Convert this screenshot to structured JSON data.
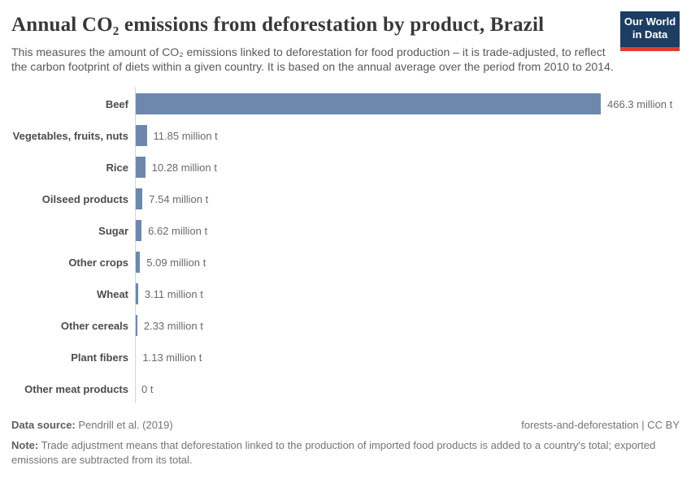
{
  "header": {
    "logo": {
      "line1": "Our World",
      "line2": "in Data"
    }
  },
  "chart_data": {
    "type": "bar",
    "orientation": "horizontal",
    "title": "Annual CO₂ emissions from deforestation by product, Brazil",
    "subtitle": "This measures the amount of CO₂ emissions linked to deforestation for food production – it is trade-adjusted, to reflect the carbon footprint of diets within a given country. It is based on the annual average over the period from 2010 to 2014.",
    "categories": [
      "Beef",
      "Vegetables, fruits, nuts",
      "Rice",
      "Oilseed products",
      "Sugar",
      "Other crops",
      "Wheat",
      "Other cereals",
      "Plant fibers",
      "Other meat products"
    ],
    "values": [
      466.3,
      11.85,
      10.28,
      7.54,
      6.62,
      5.09,
      3.11,
      2.33,
      1.13,
      0
    ],
    "value_labels": [
      "466.3 million t",
      "11.85 million t",
      "10.28 million t",
      "7.54 million t",
      "6.62 million t",
      "5.09 million t",
      "3.11 million t",
      "2.33 million t",
      "1.13 million t",
      "0 t"
    ],
    "unit": "million t",
    "xlim": [
      0,
      466.3
    ],
    "grid": "off",
    "legend": "none",
    "bar_color": "#6e88ad"
  },
  "footer": {
    "data_source_label": "Data source:",
    "data_source_value": "Pendrill et al. (2019)",
    "credit_link": "forests-and-deforestation",
    "credit_sep": " | ",
    "credit_license": "CC BY",
    "note_label": "Note:",
    "note_text": "Trade adjustment means that deforestation linked to the production of imported food products is added to a country's total; exported emissions are subtracted from its total."
  },
  "colors": {
    "bar": "#6e88ad",
    "logo_navy": "#1d3d63",
    "logo_red": "#dc3e32",
    "axis_line": "#d6d6d6"
  }
}
